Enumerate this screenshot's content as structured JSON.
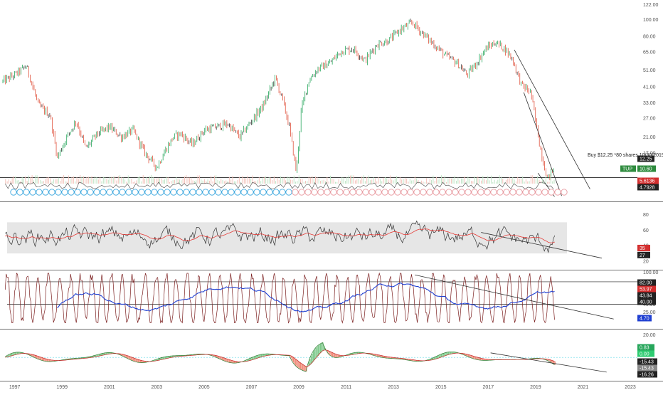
{
  "chart_data": {
    "type": "line",
    "x_axis": {
      "ticks": [
        "1997",
        "1999",
        "2001",
        "2003",
        "2005",
        "2007",
        "2009",
        "2011",
        "2013",
        "2015",
        "2017",
        "2019",
        "2021",
        "2023"
      ],
      "range": [
        1996.5,
        2023.3
      ]
    },
    "panels": [
      {
        "id": "price",
        "scale": "log",
        "yrange": [
          9,
          125
        ],
        "y_ticks": [
          "122.00",
          "100.00",
          "80.00",
          "65.00",
          "51.00",
          "41.00",
          "33.00",
          "27.00",
          "21.00",
          "17.00",
          "14.00"
        ],
        "y_tick_values": [
          122,
          100,
          80,
          65,
          51,
          41,
          33,
          27,
          21,
          17,
          14
        ],
        "series": [
          {
            "kind": "candles",
            "x": [
              1996.5,
              1997.0,
              1997.5,
              1998.0,
              1998.5,
              1998.8,
              1999.2,
              1999.6,
              2000.0,
              2000.5,
              2001.0,
              2001.5,
              2002.0,
              2002.5,
              2003.0,
              2003.3,
              2003.7,
              2004.0,
              2004.5,
              2005.0,
              2005.5,
              2006.0,
              2006.5,
              2007.0,
              2007.5,
              2008.0,
              2008.3,
              2008.6,
              2008.9,
              2009.1,
              2009.4,
              2009.8,
              2010.3,
              2010.8,
              2011.3,
              2011.8,
              2012.3,
              2012.8,
              2013.3,
              2013.8,
              2014.2,
              2014.7,
              2015.2,
              2015.7,
              2016.1,
              2016.5,
              2016.9,
              2017.3,
              2017.7,
              2018.0,
              2018.4,
              2018.8,
              2019.2,
              2019.5,
              2019.8
            ],
            "y": [
              44,
              48,
              54,
              32,
              28,
              16,
              21,
              26,
              18,
              22,
              24,
              21,
              23,
              17,
              14,
              17,
              21,
              22,
              19,
              23,
              24,
              25,
              21,
              26,
              32,
              46,
              35,
              24,
              13,
              30,
              44,
              52,
              56,
              66,
              68,
              58,
              72,
              76,
              88,
              96,
              84,
              72,
              62,
              56,
              48,
              56,
              68,
              74,
              68,
              60,
              42,
              38,
              18,
              12,
              14
            ]
          }
        ],
        "annotations": {
          "support_level": 12.25,
          "order_text": "Buy $12.25 *80 shares 10/30/2019",
          "labels": [
            "12.25",
            "TUP",
            "10.60",
            "5.6136",
            "4.7928"
          ],
          "trendlines": [
            {
              "from": [
                2018.1,
                67
              ],
              "to": [
                2021.3,
                10.5
              ]
            },
            {
              "from": [
                2018.5,
                38
              ],
              "to": [
                2020.1,
                9.6
              ]
            },
            {
              "from": [
                2019.1,
                13
              ],
              "to": [
                2019.8,
                9.5
              ]
            }
          ]
        }
      },
      {
        "id": "rsi",
        "scale": "linear",
        "yrange": [
          10,
          95
        ],
        "y_ticks": [
          "80",
          "60",
          "40",
          "20"
        ],
        "y_tick_values": [
          80,
          60,
          40,
          20
        ],
        "band": [
          30,
          70
        ],
        "value_labels": [
          "35",
          "27"
        ],
        "trendline": {
          "from": [
            2016.7,
            57
          ],
          "to": [
            2021.8,
            24
          ]
        }
      },
      {
        "id": "stochastic",
        "scale": "linear",
        "yrange": [
          -5,
          102
        ],
        "y_ticks": [
          "100.00",
          "82.00",
          "40.00",
          "25.00"
        ],
        "y_tick_values": [
          100,
          82,
          40,
          25
        ],
        "hlines": [
          82,
          40
        ],
        "value_labels": [
          "82.00",
          "53.97",
          "43.84",
          "40.00",
          "4.70"
        ],
        "trendline": {
          "from": [
            2013.9,
            95
          ],
          "to": [
            2022.3,
            12
          ]
        }
      },
      {
        "id": "macd",
        "scale": "linear",
        "yrange": [
          -20,
          24
        ],
        "y_ticks": [
          "20.00"
        ],
        "y_tick_values": [
          20
        ],
        "value_labels": [
          "0.83",
          "0.00",
          "-15.43",
          "-15.43",
          "-16.26"
        ],
        "trendline": {
          "from": [
            2017.1,
            4
          ],
          "to": [
            2022.0,
            -13
          ]
        }
      }
    ]
  },
  "colors": {
    "up": "#26a65b",
    "down": "#e0533e",
    "neutral": "#333333",
    "blue": "#1f3fd1",
    "red_line": "#e53935",
    "maroon": "#7b1f1f",
    "green_tag": "#2e8b3e",
    "red_tag": "#d32f2f",
    "dark_tag": "#222222",
    "blue_tag": "#1f3fd1",
    "lightgreen_tag": "#2ecc71"
  }
}
